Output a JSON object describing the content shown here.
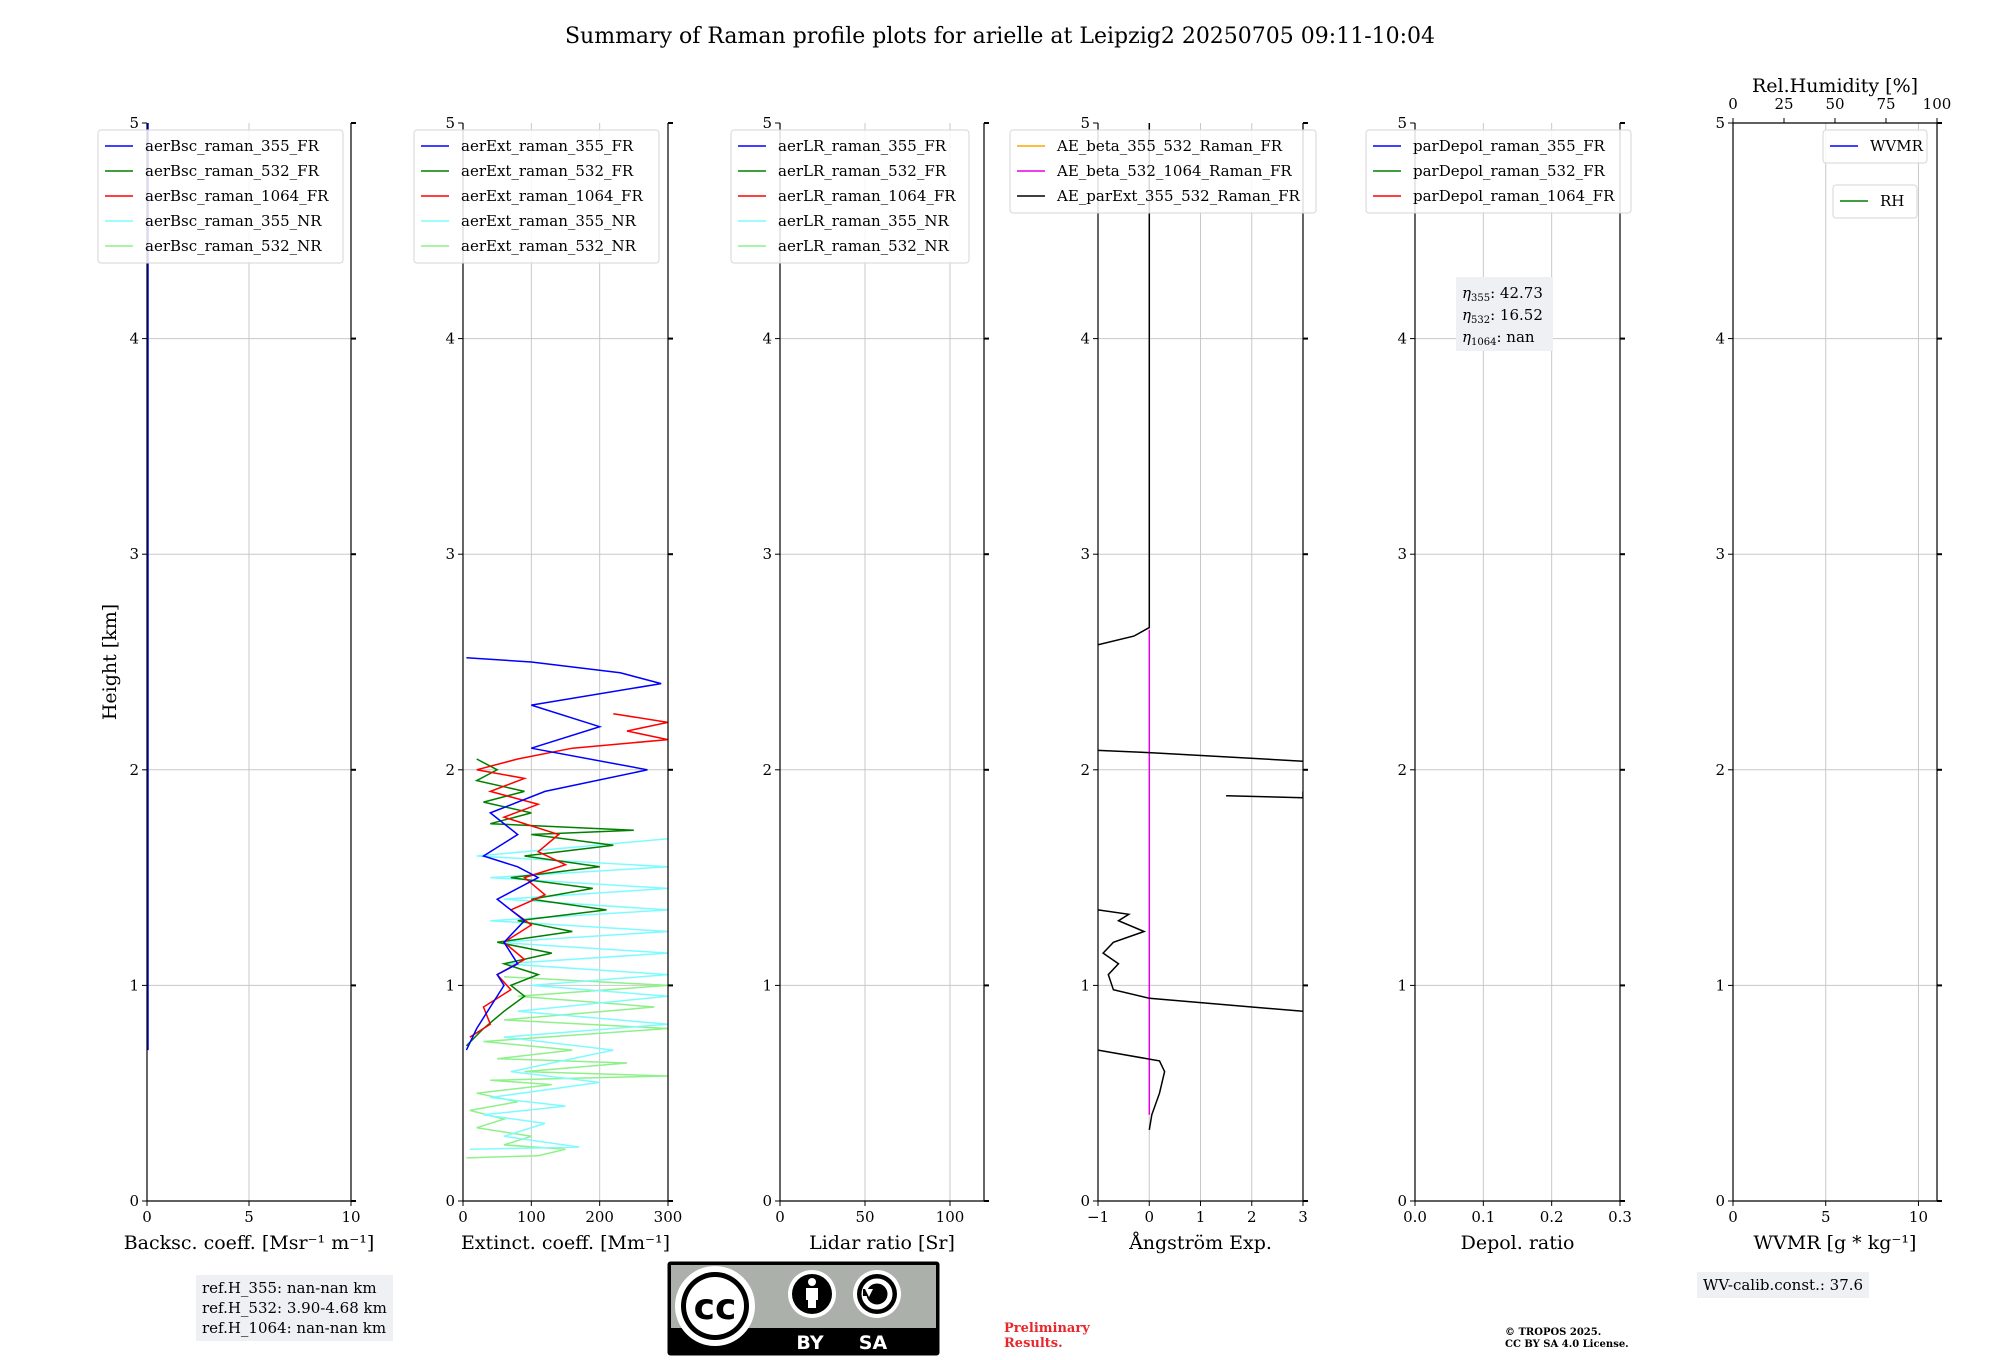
{
  "title": "Summary of Raman profile plots for arielle at Leipzig2 20250705 09:11-10:04",
  "colors": {
    "355_FR": "#0000ff",
    "532_FR": "#008000",
    "1064_FR": "#ff0000",
    "355_NR": "#7ffbff",
    "532_NR": "#8ef18a",
    "orange": "#ffa500",
    "magenta": "#e600e6",
    "black": "#000000"
  },
  "chart_data": [
    {
      "type": "line",
      "id": "bsc",
      "xlabel": "Backsc. coeff. [Msr⁻¹ m⁻¹]",
      "ylabel": "Height [km]",
      "xlim": [
        0,
        10
      ],
      "ylim": [
        0,
        5
      ],
      "xticks": [
        "0",
        "5",
        "10"
      ],
      "legend": [
        "aerBsc_raman_355_FR",
        "aerBsc_raman_532_FR",
        "aerBsc_raman_1064_FR",
        "aerBsc_raman_355_NR",
        "aerBsc_raman_532_NR"
      ],
      "legend_colors": [
        "355_FR",
        "532_FR",
        "1064_FR",
        "355_NR",
        "532_NR"
      ],
      "series": [
        {
          "name": "aerBsc_raman_355_FR",
          "color": "355_FR",
          "points": [
            [
              0.05,
              0.7
            ],
            [
              0.05,
              5.0
            ]
          ]
        }
      ]
    },
    {
      "type": "line",
      "id": "ext",
      "xlabel": "Extinct. coeff. [Mm⁻¹]",
      "xlim": [
        0,
        300
      ],
      "ylim": [
        0,
        5
      ],
      "xticks": [
        "0",
        "100",
        "200",
        "300"
      ],
      "legend": [
        "aerExt_raman_355_FR",
        "aerExt_raman_532_FR",
        "aerExt_raman_1064_FR",
        "aerExt_raman_355_NR",
        "aerExt_raman_532_NR"
      ],
      "legend_colors": [
        "355_FR",
        "532_FR",
        "1064_FR",
        "355_NR",
        "532_NR"
      ],
      "series": [
        {
          "name": "aerExt_raman_532_NR",
          "color": "532_NR",
          "points": [
            [
              5,
              0.2
            ],
            [
              110,
              0.21
            ],
            [
              150,
              0.24
            ],
            [
              60,
              0.26
            ],
            [
              100,
              0.3
            ],
            [
              20,
              0.34
            ],
            [
              60,
              0.38
            ],
            [
              10,
              0.42
            ],
            [
              80,
              0.46
            ],
            [
              20,
              0.5
            ],
            [
              130,
              0.54
            ],
            [
              40,
              0.56
            ],
            [
              300,
              0.58
            ],
            [
              90,
              0.6
            ],
            [
              240,
              0.64
            ],
            [
              50,
              0.66
            ],
            [
              160,
              0.7
            ],
            [
              30,
              0.74
            ],
            [
              300,
              0.8
            ],
            [
              60,
              0.84
            ],
            [
              280,
              0.9
            ],
            [
              80,
              0.95
            ],
            [
              300,
              1.0
            ],
            [
              60,
              1.04
            ]
          ]
        },
        {
          "name": "aerExt_raman_355_NR",
          "color": "355_NR",
          "points": [
            [
              10,
              0.24
            ],
            [
              170,
              0.25
            ],
            [
              60,
              0.3
            ],
            [
              120,
              0.36
            ],
            [
              30,
              0.4
            ],
            [
              150,
              0.44
            ],
            [
              40,
              0.48
            ],
            [
              200,
              0.55
            ],
            [
              70,
              0.6
            ],
            [
              220,
              0.7
            ],
            [
              60,
              0.76
            ],
            [
              300,
              0.82
            ],
            [
              80,
              0.88
            ],
            [
              300,
              0.95
            ],
            [
              100,
              1.0
            ],
            [
              300,
              1.05
            ],
            [
              60,
              1.1
            ],
            [
              300,
              1.15
            ],
            [
              50,
              1.2
            ],
            [
              300,
              1.25
            ],
            [
              40,
              1.3
            ],
            [
              300,
              1.35
            ],
            [
              60,
              1.4
            ],
            [
              300,
              1.45
            ],
            [
              40,
              1.5
            ],
            [
              300,
              1.55
            ],
            [
              20,
              1.6
            ],
            [
              300,
              1.68
            ]
          ]
        },
        {
          "name": "aerExt_raman_532_FR",
          "color": "532_FR",
          "points": [
            [
              5,
              0.72
            ],
            [
              30,
              0.8
            ],
            [
              60,
              0.88
            ],
            [
              90,
              0.95
            ],
            [
              70,
              1.0
            ],
            [
              110,
              1.05
            ],
            [
              60,
              1.1
            ],
            [
              130,
              1.15
            ],
            [
              50,
              1.2
            ],
            [
              160,
              1.25
            ],
            [
              80,
              1.3
            ],
            [
              210,
              1.35
            ],
            [
              100,
              1.4
            ],
            [
              190,
              1.45
            ],
            [
              70,
              1.5
            ],
            [
              200,
              1.55
            ],
            [
              90,
              1.6
            ],
            [
              220,
              1.65
            ],
            [
              100,
              1.7
            ],
            [
              250,
              1.72
            ],
            [
              40,
              1.75
            ],
            [
              100,
              1.8
            ],
            [
              30,
              1.85
            ],
            [
              90,
              1.9
            ],
            [
              20,
              1.95
            ],
            [
              50,
              2.0
            ],
            [
              20,
              2.05
            ]
          ]
        },
        {
          "name": "aerExt_raman_1064_FR",
          "color": "1064_FR",
          "points": [
            [
              10,
              0.76
            ],
            [
              40,
              0.82
            ],
            [
              30,
              0.9
            ],
            [
              70,
              0.98
            ],
            [
              50,
              1.05
            ],
            [
              90,
              1.12
            ],
            [
              60,
              1.2
            ],
            [
              100,
              1.28
            ],
            [
              70,
              1.35
            ],
            [
              120,
              1.42
            ],
            [
              90,
              1.5
            ],
            [
              150,
              1.56
            ],
            [
              110,
              1.62
            ],
            [
              140,
              1.7
            ],
            [
              60,
              1.78
            ],
            [
              110,
              1.84
            ],
            [
              40,
              1.9
            ],
            [
              90,
              1.96
            ],
            [
              20,
              2.0
            ],
            [
              80,
              2.05
            ],
            [
              160,
              2.1
            ],
            [
              300,
              2.14
            ],
            [
              240,
              2.18
            ],
            [
              300,
              2.22
            ],
            [
              220,
              2.26
            ]
          ]
        },
        {
          "name": "aerExt_raman_355_FR",
          "color": "355_FR",
          "points": [
            [
              5,
              0.7
            ],
            [
              20,
              0.8
            ],
            [
              40,
              0.9
            ],
            [
              60,
              1.0
            ],
            [
              50,
              1.05
            ],
            [
              80,
              1.1
            ],
            [
              60,
              1.2
            ],
            [
              90,
              1.3
            ],
            [
              50,
              1.4
            ],
            [
              110,
              1.5
            ],
            [
              80,
              1.55
            ],
            [
              30,
              1.6
            ],
            [
              80,
              1.7
            ],
            [
              40,
              1.8
            ],
            [
              120,
              1.9
            ],
            [
              270,
              2.0
            ],
            [
              100,
              2.1
            ],
            [
              200,
              2.2
            ],
            [
              100,
              2.3
            ],
            [
              290,
              2.4
            ],
            [
              230,
              2.45
            ],
            [
              100,
              2.5
            ],
            [
              5,
              2.52
            ]
          ]
        }
      ]
    },
    {
      "type": "line",
      "id": "lr",
      "xlabel": "Lidar ratio [Sr]",
      "xlim": [
        0,
        120
      ],
      "ylim": [
        0,
        5
      ],
      "xticks": [
        "0",
        "50",
        "100"
      ],
      "legend": [
        "aerLR_raman_355_FR",
        "aerLR_raman_532_FR",
        "aerLR_raman_1064_FR",
        "aerLR_raman_355_NR",
        "aerLR_raman_532_NR"
      ],
      "legend_colors": [
        "355_FR",
        "532_FR",
        "1064_FR",
        "355_NR",
        "532_NR"
      ],
      "series": []
    },
    {
      "type": "line",
      "id": "ae",
      "xlabel": "Ångström Exp.",
      "xlim": [
        -1,
        3
      ],
      "ylim": [
        0,
        5
      ],
      "xticks": [
        "−1",
        "0",
        "1",
        "2",
        "3"
      ],
      "legend": [
        "AE_beta_355_532_Raman_FR",
        "AE_beta_532_1064_Raman_FR",
        "AE_parExt_355_532_Raman_FR"
      ],
      "legend_colors": [
        "orange",
        "magenta",
        "black"
      ],
      "series": [
        {
          "name": "AE_beta_532_1064_Raman_FR",
          "color": "magenta",
          "points": [
            [
              0,
              0.4
            ],
            [
              0,
              2.65
            ]
          ]
        },
        {
          "name": "AE_parExt_355_532_Raman_FR",
          "color": "black",
          "points": [
            [
              0,
              0.33
            ],
            [
              0.05,
              0.4
            ],
            [
              0.2,
              0.5
            ],
            [
              0.3,
              0.6
            ],
            [
              0.2,
              0.65
            ],
            [
              -1,
              0.7
            ]
          ]
        },
        {
          "name": "AE_parExt_355_532_Raman_FR",
          "color": "black",
          "points": [
            [
              3,
              0.88
            ],
            [
              2,
              0.9
            ],
            [
              0,
              0.94
            ],
            [
              -0.7,
              0.98
            ],
            [
              -0.8,
              1.05
            ],
            [
              -0.6,
              1.1
            ],
            [
              -0.9,
              1.15
            ],
            [
              -0.7,
              1.2
            ],
            [
              -0.1,
              1.25
            ],
            [
              -0.6,
              1.3
            ],
            [
              -0.4,
              1.33
            ],
            [
              -1,
              1.35
            ]
          ]
        },
        {
          "name": "AE_parExt_355_532_Raman_FR",
          "color": "black",
          "points": [
            [
              1.5,
              1.88
            ],
            [
              3,
              1.87
            ],
            [
              3,
              1.88
            ],
            [
              3,
              1.9
            ]
          ]
        },
        {
          "name": "AE_parExt_355_532_Raman_FR",
          "color": "black",
          "points": [
            [
              3,
              2.04
            ],
            [
              0,
              2.08
            ],
            [
              -1,
              2.09
            ]
          ]
        },
        {
          "name": "AE_parExt_355_532_Raman_FR",
          "color": "black",
          "points": [
            [
              -1,
              2.58
            ],
            [
              -0.3,
              2.62
            ],
            [
              0,
              2.66
            ],
            [
              0,
              5.0
            ]
          ]
        }
      ]
    },
    {
      "type": "line",
      "id": "depol",
      "xlabel": "Depol. ratio",
      "xlim": [
        0,
        0.3
      ],
      "ylim": [
        0,
        5
      ],
      "xticks": [
        "0.0",
        "0.1",
        "0.2",
        "0.3"
      ],
      "legend": [
        "parDepol_raman_355_FR",
        "parDepol_raman_532_FR",
        "parDepol_raman_1064_FR"
      ],
      "legend_colors": [
        "355_FR",
        "532_FR",
        "1064_FR"
      ],
      "eta": [
        {
          "sub": "355",
          "value": "42.73"
        },
        {
          "sub": "532",
          "value": "16.52"
        },
        {
          "sub": "1064",
          "value": "nan"
        }
      ],
      "series": []
    },
    {
      "type": "line",
      "id": "wv",
      "xlabel": "WVMR [g * kg⁻¹]",
      "toplabel": "Rel.Humidity [%]",
      "xlim": [
        0,
        11
      ],
      "ylim": [
        0,
        5
      ],
      "xticks": [
        "0",
        "5",
        "10"
      ],
      "top_xlim": [
        0,
        100
      ],
      "top_xticks": [
        "0",
        "25",
        "50",
        "75",
        "100"
      ],
      "legend": [
        "WVMR"
      ],
      "legend_colors": [
        "355_FR"
      ],
      "legend2": [
        "RH"
      ],
      "legend2_colors": [
        "532_FR"
      ],
      "series": []
    }
  ],
  "yticks": [
    "0",
    "1",
    "2",
    "3",
    "4",
    "5"
  ],
  "refbox": [
    "ref.H_355: nan-nan km",
    "ref.H_532: 3.90-4.68 km",
    "ref.H_1064: nan-nan km"
  ],
  "wv_calib": "WV-calib.const.: 37.6",
  "cc_license": {
    "left": "BY",
    "right": "SA"
  },
  "preliminary": [
    "Preliminary",
    "Results."
  ],
  "copyright": [
    "© TROPOS 2025.",
    "CC BY SA 4.0 License."
  ]
}
